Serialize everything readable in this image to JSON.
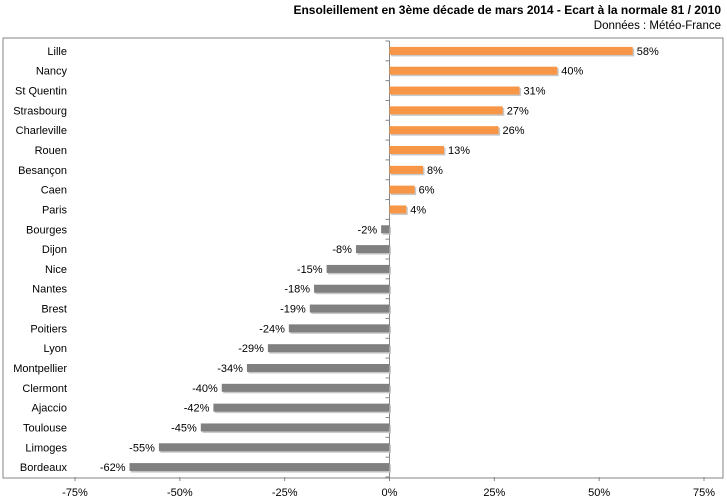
{
  "chart_data": {
    "type": "bar",
    "orientation": "horizontal",
    "title": "Ensoleillement  en 3ème décade de mars 2014 - Ecart à la normale 81 / 2010",
    "subtitle": "Données : Météo-France",
    "categories": [
      "Lille",
      "Nancy",
      "St Quentin",
      "Strasbourg",
      "Charleville",
      "Rouen",
      "Besançon",
      "Caen",
      "Paris",
      "Bourges",
      "Dijon",
      "Nice",
      "Nantes",
      "Brest",
      "Poitiers",
      "Lyon",
      "Montpellier",
      "Clermont",
      "Ajaccio",
      "Toulouse",
      "Limoges",
      "Bordeaux"
    ],
    "values": [
      58,
      40,
      31,
      27,
      26,
      13,
      8,
      6,
      4,
      -2,
      -8,
      -15,
      -18,
      -19,
      -24,
      -29,
      -34,
      -40,
      -42,
      -45,
      -55,
      -62
    ],
    "value_labels": [
      "58%",
      "40%",
      "31%",
      "27%",
      "26%",
      "13%",
      "8%",
      "6%",
      "4%",
      "-2%",
      "-8%",
      "-15%",
      "-18%",
      "-19%",
      "-24%",
      "-29%",
      "-34%",
      "-40%",
      "-42%",
      "-45%",
      "-55%",
      "-62%"
    ],
    "xlim": [
      -75,
      75
    ],
    "ticks": [
      -75,
      -50,
      -25,
      0,
      25,
      50,
      75
    ],
    "tick_labels": [
      "-75%",
      "-50%",
      "-25%",
      "0%",
      "25%",
      "50%",
      "75%"
    ],
    "grid": false,
    "legend": "none",
    "colors": {
      "positive": "#F79646",
      "negative": "#808080",
      "axis": "#868686",
      "border": "#868686"
    }
  }
}
